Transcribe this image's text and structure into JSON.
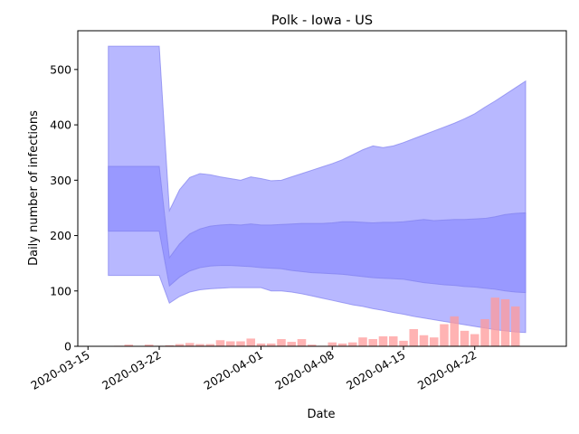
{
  "chart_data": {
    "type": "area",
    "title": "Polk - Iowa - US",
    "xlabel": "Date",
    "ylabel": "Daily number of infections",
    "xlim": [
      "2020-03-14",
      "2020-05-01"
    ],
    "ylim": [
      0,
      570
    ],
    "x_ticks": [
      "2020-03-15",
      "2020-03-22",
      "2020-04-01",
      "2020-04-08",
      "2020-04-15",
      "2020-04-22"
    ],
    "y_ticks": [
      0,
      100,
      200,
      300,
      400,
      500
    ],
    "grid": false,
    "colors": {
      "bars": "#ff9999",
      "band_outer": "#b8b8ff",
      "band_inner": "#9999ff",
      "band_edge": "#8080ee"
    },
    "x": [
      "2020-03-17",
      "2020-03-18",
      "2020-03-19",
      "2020-03-20",
      "2020-03-21",
      "2020-03-22",
      "2020-03-23",
      "2020-03-24",
      "2020-03-25",
      "2020-03-26",
      "2020-03-27",
      "2020-03-28",
      "2020-03-29",
      "2020-03-30",
      "2020-03-31",
      "2020-04-01",
      "2020-04-02",
      "2020-04-03",
      "2020-04-04",
      "2020-04-05",
      "2020-04-06",
      "2020-04-07",
      "2020-04-08",
      "2020-04-09",
      "2020-04-10",
      "2020-04-11",
      "2020-04-12",
      "2020-04-13",
      "2020-04-14",
      "2020-04-15",
      "2020-04-16",
      "2020-04-17",
      "2020-04-18",
      "2020-04-19",
      "2020-04-20",
      "2020-04-21",
      "2020-04-22",
      "2020-04-23",
      "2020-04-24",
      "2020-04-25",
      "2020-04-26",
      "2020-04-27"
    ],
    "daily_cases": [
      0,
      1,
      3,
      0,
      3,
      1,
      2,
      4,
      6,
      4,
      4,
      11,
      9,
      9,
      14,
      5,
      5,
      13,
      8,
      13,
      3,
      1,
      7,
      5,
      7,
      16,
      13,
      18,
      18,
      10,
      31,
      20,
      16,
      40,
      54,
      28,
      22,
      49,
      88,
      85,
      72,
      0
    ],
    "outer_upper": [
      542,
      542,
      542,
      542,
      542,
      542,
      245,
      283,
      305,
      312,
      310,
      306,
      303,
      300,
      306,
      303,
      299,
      300,
      306,
      312,
      318,
      324,
      330,
      337,
      346,
      355,
      362,
      359,
      362,
      368,
      375,
      382,
      389,
      396,
      403,
      411,
      420,
      432,
      443,
      455,
      467,
      479
    ],
    "inner_upper": [
      325,
      325,
      325,
      325,
      325,
      325,
      160,
      185,
      203,
      212,
      217,
      219,
      220,
      219,
      221,
      219,
      219,
      220,
      221,
      222,
      222,
      222,
      223,
      225,
      225,
      224,
      223,
      224,
      224,
      225,
      227,
      229,
      227,
      228,
      229,
      229,
      230,
      231,
      234,
      238,
      240,
      241
    ],
    "inner_lower": [
      208,
      208,
      208,
      208,
      208,
      208,
      109,
      125,
      136,
      142,
      145,
      146,
      146,
      145,
      144,
      142,
      141,
      140,
      137,
      135,
      133,
      132,
      131,
      130,
      128,
      126,
      124,
      123,
      122,
      121,
      118,
      115,
      113,
      111,
      110,
      108,
      107,
      105,
      103,
      100,
      98,
      97
    ],
    "outer_lower": [
      128,
      128,
      128,
      128,
      128,
      128,
      78,
      90,
      98,
      102,
      104,
      105,
      106,
      106,
      106,
      106,
      100,
      100,
      98,
      95,
      91,
      87,
      83,
      79,
      75,
      72,
      68,
      65,
      61,
      58,
      54,
      51,
      48,
      45,
      42,
      39,
      36,
      33,
      30,
      28,
      26,
      25
    ]
  }
}
